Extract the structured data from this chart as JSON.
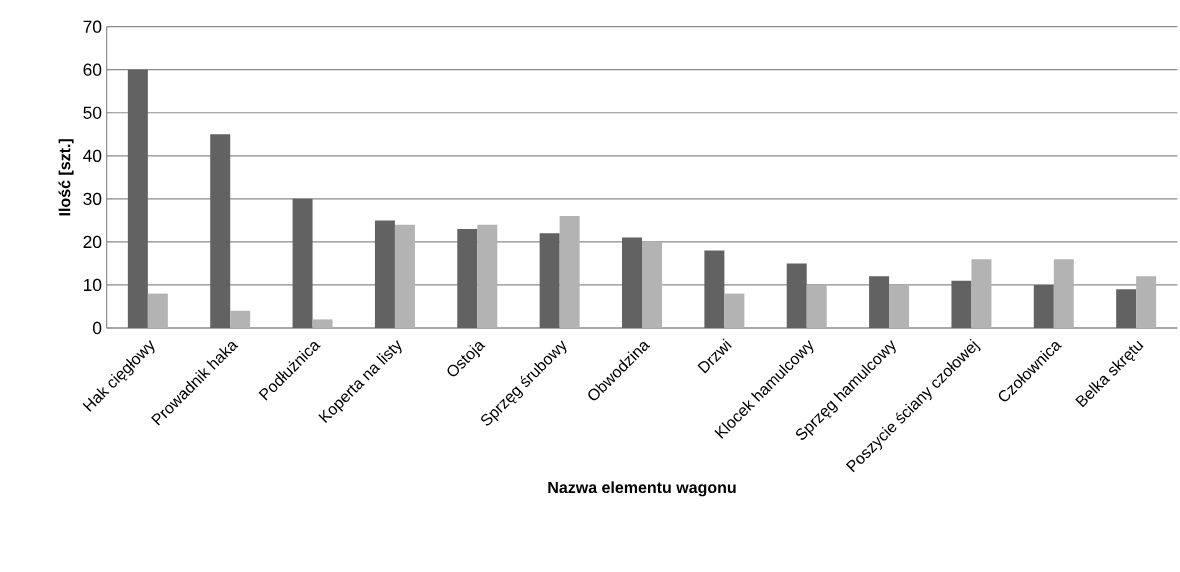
{
  "chart_data": {
    "type": "bar",
    "xlabel": "Nazwa elementu wagonu",
    "ylabel": "Ilość [szt.]",
    "categories": [
      "Hak cięgłowy",
      "Prowadnik haka",
      "Podłużnica",
      "Koperta na listy",
      "Ostoja",
      "Sprzęg śrubowy",
      "Obwodzina",
      "Drzwi",
      "Klocek hamulcowy",
      "Sprzęg hamulcowy",
      "Poszycie ściany czołowej",
      "Czołownica",
      "Belka skrętu"
    ],
    "series": [
      {
        "color": "#626262",
        "values": [
          60,
          45,
          30,
          25,
          23,
          22,
          21,
          18,
          15,
          12,
          11,
          10,
          9
        ]
      },
      {
        "color": "#b3b3b3",
        "values": [
          8,
          4,
          2,
          24,
          24,
          26,
          20,
          8,
          10,
          10,
          16,
          16,
          12
        ]
      }
    ],
    "ylim": [
      0,
      70
    ],
    "yticks": [
      0,
      10,
      20,
      30,
      40,
      50,
      60,
      70
    ],
    "grid": "y"
  }
}
